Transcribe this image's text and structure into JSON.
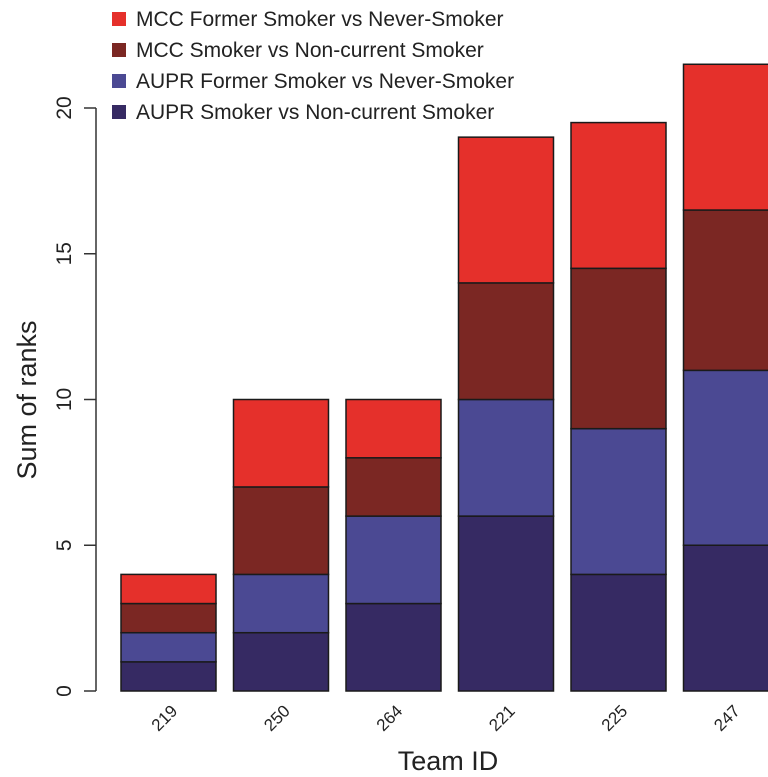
{
  "chart_data": {
    "type": "bar",
    "stacked": true,
    "xlabel": "Team ID",
    "ylabel": "Sum of ranks",
    "ylim": [
      0,
      22
    ],
    "yticks": [
      0,
      5,
      10,
      15,
      20
    ],
    "grid": false,
    "legend_position": "top-left",
    "categories": [
      "219",
      "250",
      "264",
      "221",
      "225",
      "247"
    ],
    "series": [
      {
        "name": "AUPR Smoker vs Non-current Smoker",
        "color": "#362a63",
        "values": [
          1,
          2,
          3,
          6,
          4,
          5
        ]
      },
      {
        "name": "AUPR Former Smoker vs Never-Smoker",
        "color": "#4b4993",
        "values": [
          1,
          2,
          3,
          4,
          5,
          6
        ]
      },
      {
        "name": "MCC Smoker vs Non-current Smoker",
        "color": "#7b2723",
        "values": [
          1,
          3,
          2,
          4,
          5.5,
          5.5
        ]
      },
      {
        "name": "MCC Former Smoker vs Never-Smoker",
        "color": "#e5302b",
        "values": [
          1,
          3,
          2,
          5,
          5,
          5
        ]
      }
    ],
    "legend_order": [
      3,
      2,
      1,
      0
    ]
  }
}
